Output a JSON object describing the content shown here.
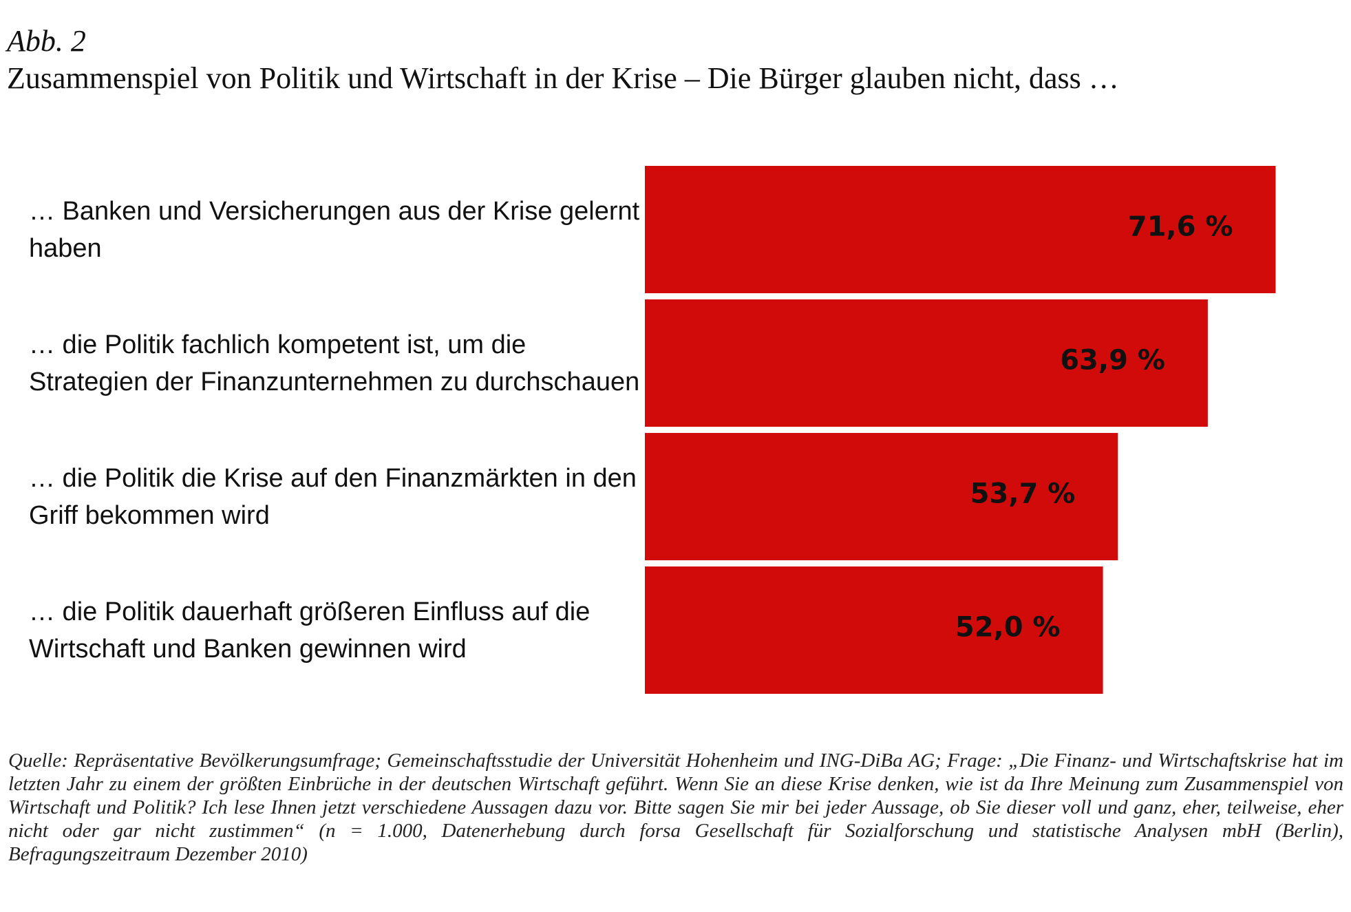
{
  "chart_data": {
    "type": "bar",
    "orientation": "horizontal",
    "figure_label": "Abb. 2",
    "title": "Zusammenspiel von Politik und Wirtschaft in der Krise – Die Bürger glauben nicht, dass …",
    "categories": [
      "… Banken und Versicherungen aus der Krise gelernt haben",
      "… die Politik fachlich kompetent ist, um die Strategien der Finanzunternehmen zu durchschauen",
      "… die Politik die Krise auf den Finanzmärkten in den Griff bekommen wird",
      "… die Politik dauerhaft größeren Einfluss auf die Wirtschaft und Banken gewinnen wird"
    ],
    "values": [
      71.6,
      63.9,
      53.7,
      52.0
    ],
    "value_labels": [
      "71,6 %",
      "63,9 %",
      "53,7 %",
      "52,0 %"
    ],
    "color": "#d10a0a",
    "xlim": [
      0,
      100
    ],
    "note": "Quelle: Repräsentative Bevölkerungsumfrage; Gemeinschaftsstudie der Universität Hohenheim und ING-DiBa AG; Frage: „Die Finanz- und Wirtschaftskrise hat im letzten Jahr zu einem der größten Einbrüche in der deutschen Wirtschaft geführt. Wenn Sie an diese Krise denken, wie ist da Ihre Meinung zum Zusammenspiel von Wirtschaft und Politik? Ich lese Ihnen jetzt verschiedene Aussagen dazu vor. Bitte sagen Sie mir bei jeder Aussage, ob Sie dieser voll und ganz, eher, teilweise, eher nicht oder gar nicht zustimmen“ (n = 1.000, Datenerhebung durch forsa Gesellschaft für Sozialforschung und statistische Analysen mbH (Berlin), Befragungszeitraum Dezember 2010)"
  }
}
